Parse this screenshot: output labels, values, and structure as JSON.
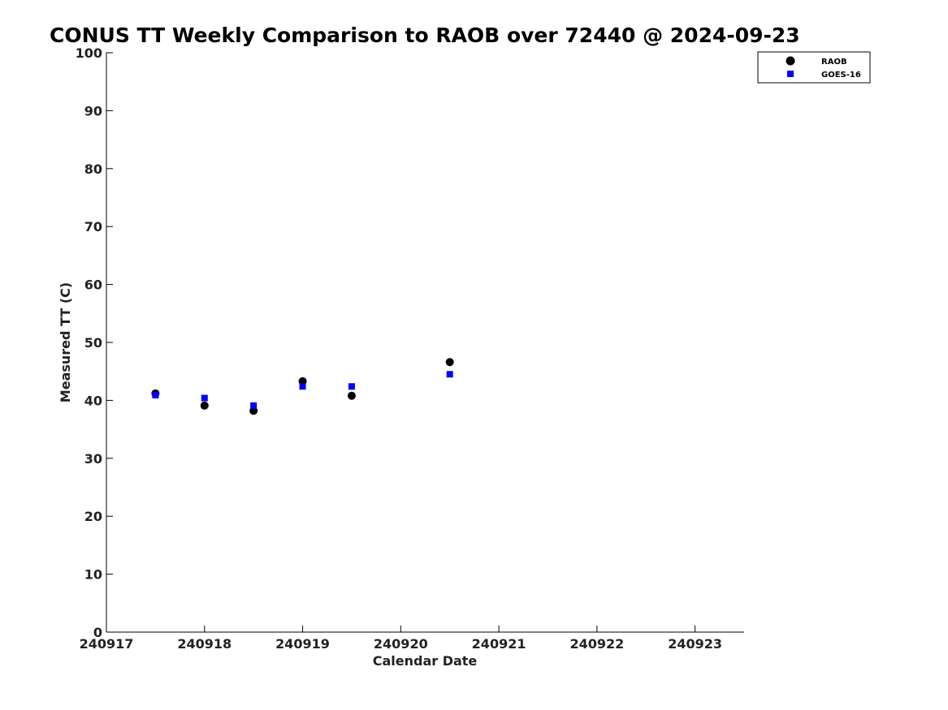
{
  "chart_data": {
    "type": "scatter",
    "title": "CONUS TT Weekly Comparison to RAOB over 72440 @ 2024-09-23",
    "xlabel": "Calendar Date",
    "ylabel": "Measured TT (C)",
    "xlim": [
      240917,
      240923.5
    ],
    "ylim": [
      0,
      100
    ],
    "x_ticks": [
      240917,
      240918,
      240919,
      240920,
      240921,
      240922,
      240923
    ],
    "x_tick_labels": [
      "240917",
      "240918",
      "240919",
      "240920",
      "240921",
      "240922",
      "240923"
    ],
    "y_ticks": [
      0,
      10,
      20,
      30,
      40,
      50,
      60,
      70,
      80,
      90,
      100
    ],
    "y_tick_labels": [
      "0",
      "10",
      "20",
      "30",
      "40",
      "50",
      "60",
      "70",
      "80",
      "90",
      "100"
    ],
    "grid": false,
    "legend": "top-right",
    "series": [
      {
        "name": "RAOB",
        "marker": "circle",
        "color": "#000000",
        "x": [
          240917.5,
          240918,
          240918.5,
          240919,
          240919.5,
          240920.5
        ],
        "y": [
          41.2,
          39.1,
          38.2,
          43.3,
          40.8,
          46.6
        ]
      },
      {
        "name": "GOES-16",
        "marker": "square",
        "color": "#0000ff",
        "x": [
          240917.5,
          240918,
          240918.5,
          240919,
          240919.5,
          240920.5
        ],
        "y": [
          40.9,
          40.4,
          39.1,
          42.4,
          42.4,
          44.5
        ]
      }
    ]
  }
}
